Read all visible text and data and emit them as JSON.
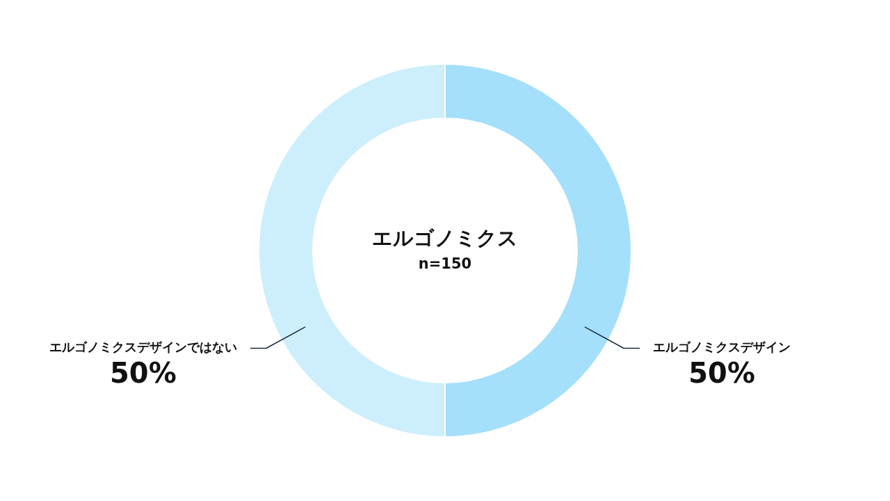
{
  "chart_data": {
    "type": "donut",
    "title": "エルゴノミクス",
    "subtitle": "n=150",
    "categories": [
      "エルゴノミクスデザイン",
      "エルゴノミクスデザインではない"
    ],
    "values": [
      50,
      50
    ],
    "colors": [
      "#a4dffb",
      "#cdeefc"
    ],
    "value_labels": [
      "50%",
      "50%"
    ]
  }
}
